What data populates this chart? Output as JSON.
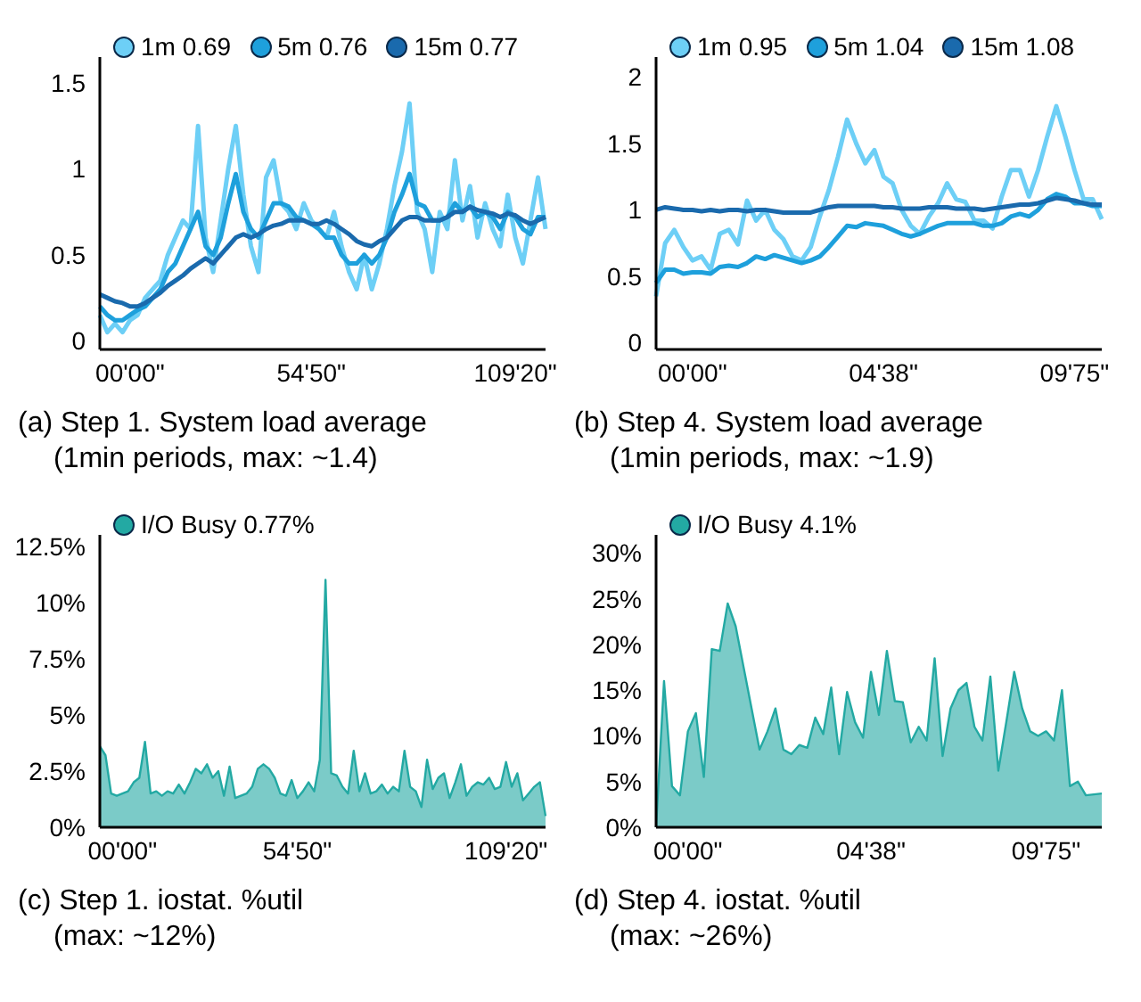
{
  "chart_data": [
    {
      "type": "line",
      "annotations": [
        "(a) Step 1. System load average",
        "(1min periods, max: ~1.4)"
      ],
      "legend": "top left",
      "ylim": [
        -0.05,
        1.65
      ],
      "yticks": [
        0,
        0.5,
        1,
        1.5
      ],
      "categories": [
        null,
        null,
        null,
        null,
        "00'00\"",
        null,
        null,
        null,
        null,
        null,
        null,
        null,
        null,
        null,
        null,
        null,
        null,
        null,
        null,
        null,
        null,
        null,
        null,
        null,
        null,
        null,
        null,
        null,
        "54'50\"",
        null,
        null,
        null,
        null,
        null,
        null,
        null,
        null,
        null,
        null,
        null,
        null,
        null,
        null,
        null,
        null,
        null,
        null,
        null,
        null,
        null,
        null,
        null,
        null,
        null,
        null,
        "109'20\"",
        null,
        null,
        null,
        null
      ],
      "series": [
        {
          "name": "1m 0.69",
          "color": "#6dcff6",
          "values": [
            0.15,
            0.05,
            0.1,
            0.05,
            0.12,
            0.15,
            0.25,
            0.3,
            0.35,
            0.5,
            0.6,
            0.7,
            0.65,
            1.25,
            0.6,
            0.4,
            0.7,
            1.0,
            1.25,
            0.85,
            0.55,
            0.4,
            0.95,
            1.05,
            0.8,
            0.75,
            0.65,
            0.8,
            0.7,
            0.65,
            0.6,
            0.75,
            0.55,
            0.4,
            0.3,
            0.5,
            0.3,
            0.45,
            0.65,
            0.9,
            1.1,
            1.38,
            0.75,
            0.65,
            0.4,
            0.75,
            0.65,
            1.05,
            0.7,
            0.9,
            0.6,
            0.8,
            0.65,
            0.55,
            0.85,
            0.6,
            0.45,
            0.7,
            0.95,
            0.65
          ]
        },
        {
          "name": "5m 0.76",
          "color": "#1ea0dc",
          "values": [
            0.2,
            0.15,
            0.12,
            0.12,
            0.15,
            0.18,
            0.2,
            0.25,
            0.3,
            0.4,
            0.45,
            0.55,
            0.65,
            0.75,
            0.55,
            0.5,
            0.6,
            0.8,
            0.97,
            0.75,
            0.65,
            0.6,
            0.7,
            0.8,
            0.8,
            0.78,
            0.72,
            0.7,
            0.68,
            0.65,
            0.6,
            0.6,
            0.5,
            0.45,
            0.45,
            0.5,
            0.45,
            0.5,
            0.6,
            0.75,
            0.85,
            0.97,
            0.8,
            0.78,
            0.7,
            0.7,
            0.72,
            0.8,
            0.75,
            0.78,
            0.72,
            0.75,
            0.72,
            0.65,
            0.75,
            0.72,
            0.65,
            0.62,
            0.72,
            0.72
          ]
        },
        {
          "name": "15m 0.77",
          "color": "#1a6aad",
          "values": [
            0.27,
            0.25,
            0.23,
            0.22,
            0.2,
            0.2,
            0.22,
            0.25,
            0.28,
            0.32,
            0.35,
            0.38,
            0.42,
            0.45,
            0.48,
            0.45,
            0.5,
            0.55,
            0.6,
            0.62,
            0.6,
            0.62,
            0.65,
            0.67,
            0.68,
            0.7,
            0.7,
            0.7,
            0.68,
            0.68,
            0.7,
            0.68,
            0.65,
            0.62,
            0.58,
            0.56,
            0.55,
            0.58,
            0.6,
            0.65,
            0.7,
            0.72,
            0.72,
            0.7,
            0.7,
            0.7,
            0.72,
            0.75,
            0.75,
            0.78,
            0.76,
            0.75,
            0.74,
            0.72,
            0.74,
            0.73,
            0.7,
            0.68,
            0.7,
            0.72
          ]
        }
      ]
    },
    {
      "type": "line",
      "annotations": [
        "(b) Step 4. System load average",
        "(1min periods, max: ~1.9)"
      ],
      "legend": "top left",
      "ylim": [
        -0.05,
        2.15
      ],
      "yticks": [
        0,
        0.5,
        1,
        1.5,
        2
      ],
      "categories": [
        null,
        null,
        null,
        null,
        "00'00\"",
        null,
        null,
        null,
        null,
        null,
        null,
        null,
        null,
        null,
        null,
        null,
        null,
        null,
        null,
        null,
        null,
        null,
        null,
        null,
        null,
        "04'38\"",
        null,
        null,
        null,
        null,
        null,
        null,
        null,
        null,
        null,
        null,
        null,
        null,
        null,
        null,
        null,
        null,
        null,
        null,
        null,
        null,
        "09'75\"",
        null,
        null,
        null
      ],
      "series": [
        {
          "name": "1m 0.95",
          "color": "#6dcff6",
          "values": [
            0.35,
            0.75,
            0.85,
            0.72,
            0.62,
            0.65,
            0.55,
            0.82,
            0.85,
            0.74,
            1.07,
            0.92,
            1.0,
            0.85,
            0.78,
            0.65,
            0.62,
            0.72,
            0.95,
            1.15,
            1.4,
            1.68,
            1.5,
            1.35,
            1.45,
            1.25,
            1.2,
            1.0,
            0.88,
            0.82,
            0.95,
            1.05,
            1.2,
            1.08,
            1.06,
            0.92,
            0.92,
            0.86,
            1.1,
            1.3,
            1.3,
            1.1,
            1.3,
            1.55,
            1.78,
            1.55,
            1.3,
            1.08,
            1.08,
            0.93
          ]
        },
        {
          "name": "5m 1.04",
          "color": "#1ea0dc",
          "values": [
            0.45,
            0.55,
            0.55,
            0.52,
            0.53,
            0.53,
            0.52,
            0.57,
            0.58,
            0.57,
            0.6,
            0.65,
            0.63,
            0.66,
            0.64,
            0.62,
            0.6,
            0.62,
            0.65,
            0.72,
            0.8,
            0.88,
            0.87,
            0.9,
            0.89,
            0.88,
            0.85,
            0.82,
            0.8,
            0.82,
            0.85,
            0.88,
            0.9,
            0.9,
            0.9,
            0.9,
            0.88,
            0.88,
            0.9,
            0.95,
            0.97,
            0.95,
            1.0,
            1.08,
            1.12,
            1.1,
            1.05,
            1.05,
            1.03,
            1.03
          ]
        },
        {
          "name": "15m 1.08",
          "color": "#1a6aad",
          "values": [
            1.0,
            1.02,
            1.01,
            1.0,
            1.0,
            0.99,
            1.0,
            0.99,
            1.0,
            1.0,
            0.99,
            1.0,
            1.0,
            0.99,
            0.98,
            0.98,
            0.98,
            0.98,
            1.0,
            1.02,
            1.03,
            1.03,
            1.03,
            1.03,
            1.03,
            1.02,
            1.02,
            1.01,
            1.01,
            1.01,
            1.02,
            1.02,
            1.02,
            1.01,
            1.01,
            1.01,
            1.0,
            1.01,
            1.02,
            1.03,
            1.04,
            1.04,
            1.05,
            1.07,
            1.09,
            1.08,
            1.07,
            1.05,
            1.04,
            1.04
          ]
        }
      ]
    },
    {
      "type": "area",
      "annotations": [
        "(c) Step 1. iostat. %util",
        "(max: ~12%)"
      ],
      "legend": "top left",
      "ylim": [
        0,
        13
      ],
      "yticks": [
        {
          "value": 0,
          "label": "0%"
        },
        {
          "value": 2.5,
          "label": "2.5%"
        },
        {
          "value": 5,
          "label": "5%"
        },
        {
          "value": 7.5,
          "label": "7.5%"
        },
        {
          "value": 10,
          "label": "10%"
        },
        {
          "value": 12.5,
          "label": "12.5%"
        }
      ],
      "categories": [
        null,
        null,
        null,
        null,
        "00'00\"",
        null,
        null,
        null,
        null,
        null,
        null,
        null,
        null,
        null,
        null,
        null,
        null,
        null,
        null,
        null,
        null,
        null,
        null,
        null,
        null,
        null,
        null,
        null,
        null,
        null,
        null,
        null,
        null,
        null,
        null,
        "54'50\"",
        null,
        null,
        null,
        null,
        null,
        null,
        null,
        null,
        null,
        null,
        null,
        null,
        null,
        null,
        null,
        null,
        null,
        null,
        null,
        null,
        null,
        null,
        null,
        null,
        null,
        null,
        null,
        null,
        null,
        null,
        null,
        null,
        null,
        null,
        null,
        null,
        "109'20\"",
        null,
        null,
        null,
        null,
        null,
        null,
        null
      ],
      "series": [
        {
          "name": "I/O Busy 0.77%",
          "color": "#23a9a3",
          "values": [
            3.6,
            3.2,
            1.5,
            1.4,
            1.5,
            1.6,
            2.0,
            2.2,
            3.8,
            1.5,
            1.6,
            1.4,
            1.6,
            1.5,
            1.9,
            1.5,
            2.0,
            2.6,
            2.4,
            2.8,
            2.2,
            2.5,
            1.4,
            2.7,
            1.3,
            1.4,
            1.5,
            1.8,
            2.6,
            2.8,
            2.6,
            2.2,
            1.5,
            1.4,
            2.1,
            1.3,
            1.6,
            2.0,
            1.6,
            3.0,
            11.0,
            2.4,
            2.3,
            1.8,
            1.5,
            3.4,
            1.6,
            2.4,
            1.5,
            1.6,
            1.9,
            1.5,
            1.8,
            1.6,
            3.4,
            1.8,
            1.6,
            0.9,
            3.0,
            1.7,
            2.2,
            2.4,
            1.3,
            2.0,
            2.8,
            1.4,
            1.8,
            2.0,
            1.9,
            2.2,
            1.7,
            1.8,
            2.9,
            1.8,
            2.4,
            1.2,
            1.5,
            1.8,
            2.0,
            0.5
          ]
        }
      ]
    },
    {
      "type": "area",
      "annotations": [
        "(d) Step 4. iostat. %util",
        "(max: ~26%)"
      ],
      "legend": "top left",
      "ylim": [
        0,
        32
      ],
      "yticks": [
        {
          "value": 0,
          "label": "0%"
        },
        {
          "value": 5,
          "label": "5%"
        },
        {
          "value": 10,
          "label": "10%"
        },
        {
          "value": 15,
          "label": "15%"
        },
        {
          "value": 20,
          "label": "20%"
        },
        {
          "value": 25,
          "label": "25%"
        },
        {
          "value": 30,
          "label": "30%"
        }
      ],
      "categories": [
        null,
        null,
        null,
        null,
        "00'00\"",
        null,
        null,
        null,
        null,
        null,
        null,
        null,
        null,
        null,
        null,
        null,
        null,
        null,
        null,
        null,
        null,
        null,
        null,
        null,
        null,
        null,
        null,
        "04'38\"",
        null,
        null,
        null,
        null,
        null,
        null,
        null,
        null,
        null,
        null,
        null,
        null,
        null,
        null,
        null,
        null,
        null,
        null,
        null,
        null,
        null,
        "09'75\"",
        null,
        null,
        null,
        null,
        null,
        null,
        null
      ],
      "series": [
        {
          "name": "I/O Busy 4.1%",
          "color": "#23a9a3",
          "values": [
            0,
            16,
            4.5,
            3.5,
            10.5,
            12.5,
            5.5,
            19.5,
            19.3,
            24.5,
            22,
            17.5,
            13,
            8.5,
            10.5,
            13,
            8.5,
            8,
            9,
            8.7,
            12,
            10.2,
            15.3,
            8,
            14.8,
            11.5,
            9.8,
            17,
            12.3,
            19.3,
            13.8,
            13.7,
            9.3,
            11,
            9.5,
            18.5,
            7.8,
            13,
            15,
            15.8,
            11,
            9.5,
            16.5,
            6.2,
            11.5,
            17,
            13,
            10.5,
            10,
            10.5,
            9.5,
            15,
            4.5,
            5,
            3.5,
            3.6,
            3.7
          ]
        }
      ]
    }
  ]
}
